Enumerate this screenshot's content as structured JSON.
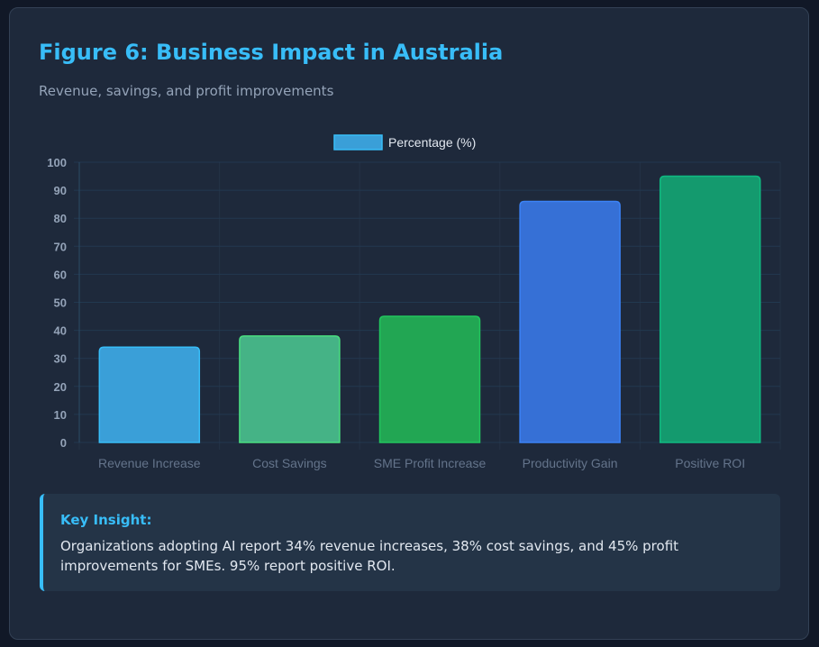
{
  "title": "Figure 6: Business Impact in Australia",
  "subtitle": "Revenue, savings, and profit improvements",
  "chart_data": {
    "type": "bar",
    "categories": [
      "Revenue Increase",
      "Cost Savings",
      "SME Profit Increase",
      "Productivity Gain",
      "Positive ROI"
    ],
    "series": [
      {
        "name": "Percentage (%)",
        "values": [
          34,
          38,
          45,
          86,
          95
        ]
      }
    ],
    "colors": [
      "#3a9fd8",
      "#45b386",
      "#22a653",
      "#3670d6",
      "#149a6e"
    ],
    "border_colors": [
      "#38bdf8",
      "#4ade80",
      "#22c55e",
      "#3b82f6",
      "#10b981"
    ],
    "ylim": [
      0,
      100
    ],
    "yticks": [
      0,
      10,
      20,
      30,
      40,
      50,
      60,
      70,
      80,
      90,
      100
    ],
    "legend": "top-center",
    "grid": true
  },
  "insight": {
    "title": "Key Insight:",
    "text": "Organizations adopting AI report 34% revenue increases, 38% cost savings, and 45% profit improvements for SMEs. 95% report positive ROI."
  }
}
